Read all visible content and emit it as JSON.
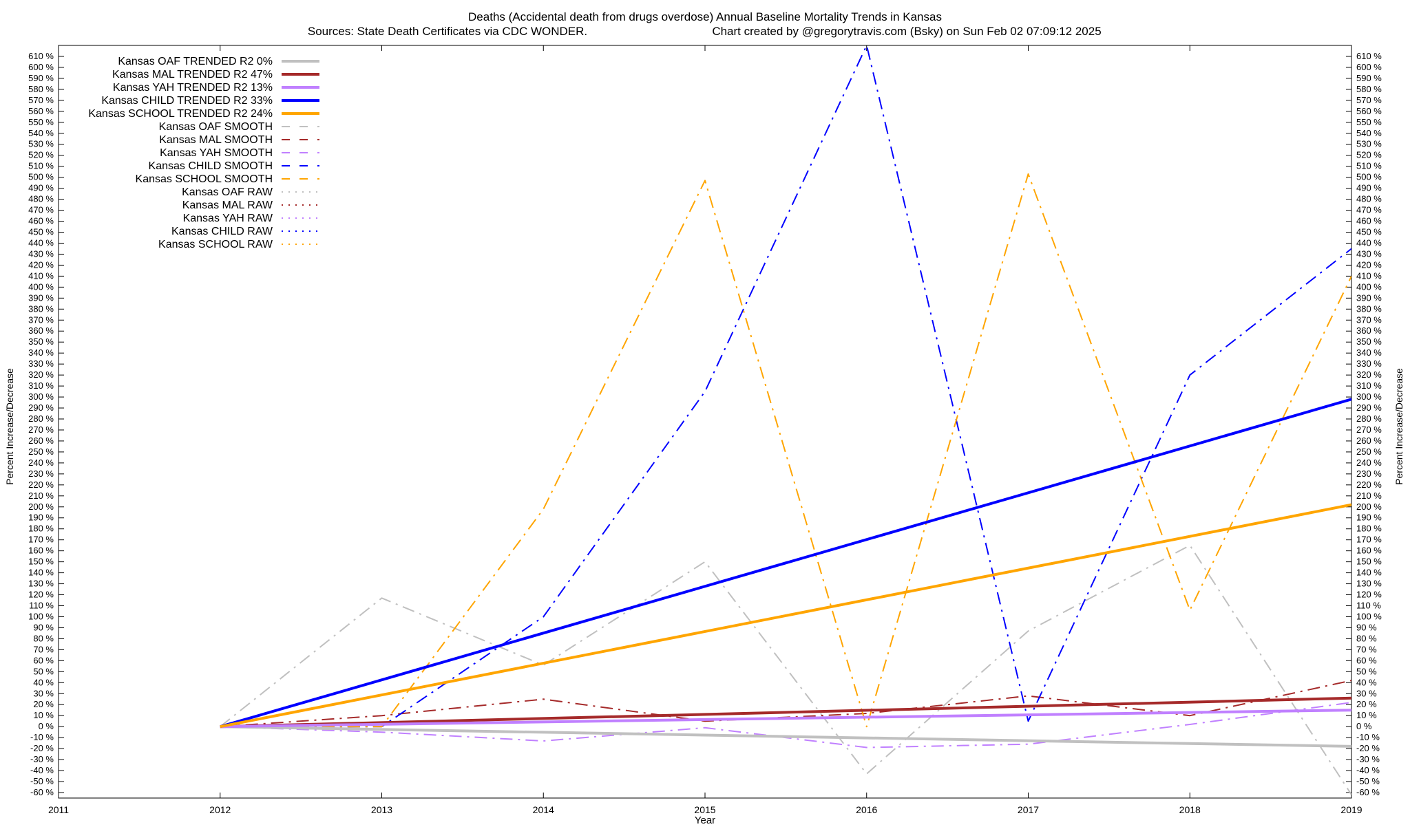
{
  "chart_data": {
    "type": "line",
    "title": "Deaths (Accidental death from drugs overdose)  Annual Baseline Mortality Trends in Kansas",
    "subtitle_left": "Sources: State Death Certificates via CDC WONDER.",
    "subtitle_right": "Chart created by @gregorytravis.com (Bsky) on Sun Feb 02 07:09:12 2025",
    "xlabel": "Year",
    "ylabel": "Percent Increase/Decrease",
    "y2label": "Percent Increase/Decrease",
    "xlim": [
      2011,
      2019
    ],
    "ylim": [
      -65,
      620
    ],
    "x_ticks": [
      "2011",
      "2012",
      "2013",
      "2014",
      "2015",
      "2016",
      "2017",
      "2018",
      "2019"
    ],
    "y_ticks_step": 10,
    "y_ticks_min": -60,
    "y_ticks_max": 610,
    "y_tick_suffix": " %",
    "grid": false,
    "legend_position": "top-left",
    "series": [
      {
        "name": "Kansas OAF TRENDED R2  0%",
        "color": "#c0c0c0",
        "style": "solid",
        "width": 4,
        "x": [
          2012,
          2019
        ],
        "values": [
          0,
          -18
        ]
      },
      {
        "name": "Kansas MAL TRENDED R2  47%",
        "color": "#a52a2a",
        "style": "solid",
        "width": 4,
        "x": [
          2012,
          2019
        ],
        "values": [
          0,
          26
        ]
      },
      {
        "name": "Kansas YAH TRENDED R2  13%",
        "color": "#c080ff",
        "style": "solid",
        "width": 4,
        "x": [
          2012,
          2019
        ],
        "values": [
          0,
          15
        ]
      },
      {
        "name": "Kansas CHILD TRENDED R2  33%",
        "color": "#0000ff",
        "style": "solid",
        "width": 4,
        "x": [
          2012,
          2019
        ],
        "values": [
          0,
          298
        ]
      },
      {
        "name": "Kansas SCHOOL TRENDED R2  24%",
        "color": "#ffa500",
        "style": "solid",
        "width": 4,
        "x": [
          2012,
          2019
        ],
        "values": [
          0,
          202
        ]
      },
      {
        "name": "Kansas OAF SMOOTH",
        "color": "#c0c0c0",
        "style": "dashdot",
        "width": 2,
        "x": [
          2012,
          2013,
          2014,
          2015,
          2016,
          2017,
          2018,
          2019
        ],
        "values": [
          0,
          117,
          56,
          150,
          -43,
          87,
          165,
          -62
        ]
      },
      {
        "name": "Kansas MAL SMOOTH",
        "color": "#a52a2a",
        "style": "dashdot",
        "width": 2,
        "x": [
          2012,
          2013,
          2014,
          2015,
          2016,
          2017,
          2018,
          2019
        ],
        "values": [
          0,
          10,
          25,
          5,
          12,
          28,
          10,
          42
        ]
      },
      {
        "name": "Kansas YAH SMOOTH",
        "color": "#c080ff",
        "style": "dashdot",
        "width": 2,
        "x": [
          2012,
          2013,
          2014,
          2015,
          2016,
          2017,
          2018,
          2019
        ],
        "values": [
          0,
          -5,
          -13,
          -1,
          -19,
          -16,
          2,
          22
        ]
      },
      {
        "name": "Kansas CHILD SMOOTH",
        "color": "#0000ff",
        "style": "dashdot",
        "width": 2,
        "x": [
          2012,
          2013,
          2014,
          2015,
          2016,
          2017,
          2018,
          2019
        ],
        "values": [
          0,
          0,
          100,
          305,
          620,
          5,
          320,
          435
        ]
      },
      {
        "name": "Kansas SCHOOL SMOOTH",
        "color": "#ffa500",
        "style": "dashdot",
        "width": 2,
        "x": [
          2012,
          2013,
          2014,
          2015,
          2016,
          2017,
          2018,
          2019
        ],
        "values": [
          0,
          0,
          198,
          497,
          0,
          503,
          106,
          410
        ]
      },
      {
        "name": "Kansas OAF RAW",
        "color": "#c0c0c0",
        "style": "dotted",
        "width": 2,
        "x": [],
        "values": []
      },
      {
        "name": "Kansas MAL RAW",
        "color": "#a52a2a",
        "style": "dotted",
        "width": 2,
        "x": [],
        "values": []
      },
      {
        "name": "Kansas YAH RAW",
        "color": "#c080ff",
        "style": "dotted",
        "width": 2,
        "x": [],
        "values": []
      },
      {
        "name": "Kansas CHILD RAW",
        "color": "#0000ff",
        "style": "dotted",
        "width": 2,
        "x": [],
        "values": []
      },
      {
        "name": "Kansas SCHOOL RAW",
        "color": "#ffa500",
        "style": "dotted",
        "width": 2,
        "x": [],
        "values": []
      }
    ]
  }
}
